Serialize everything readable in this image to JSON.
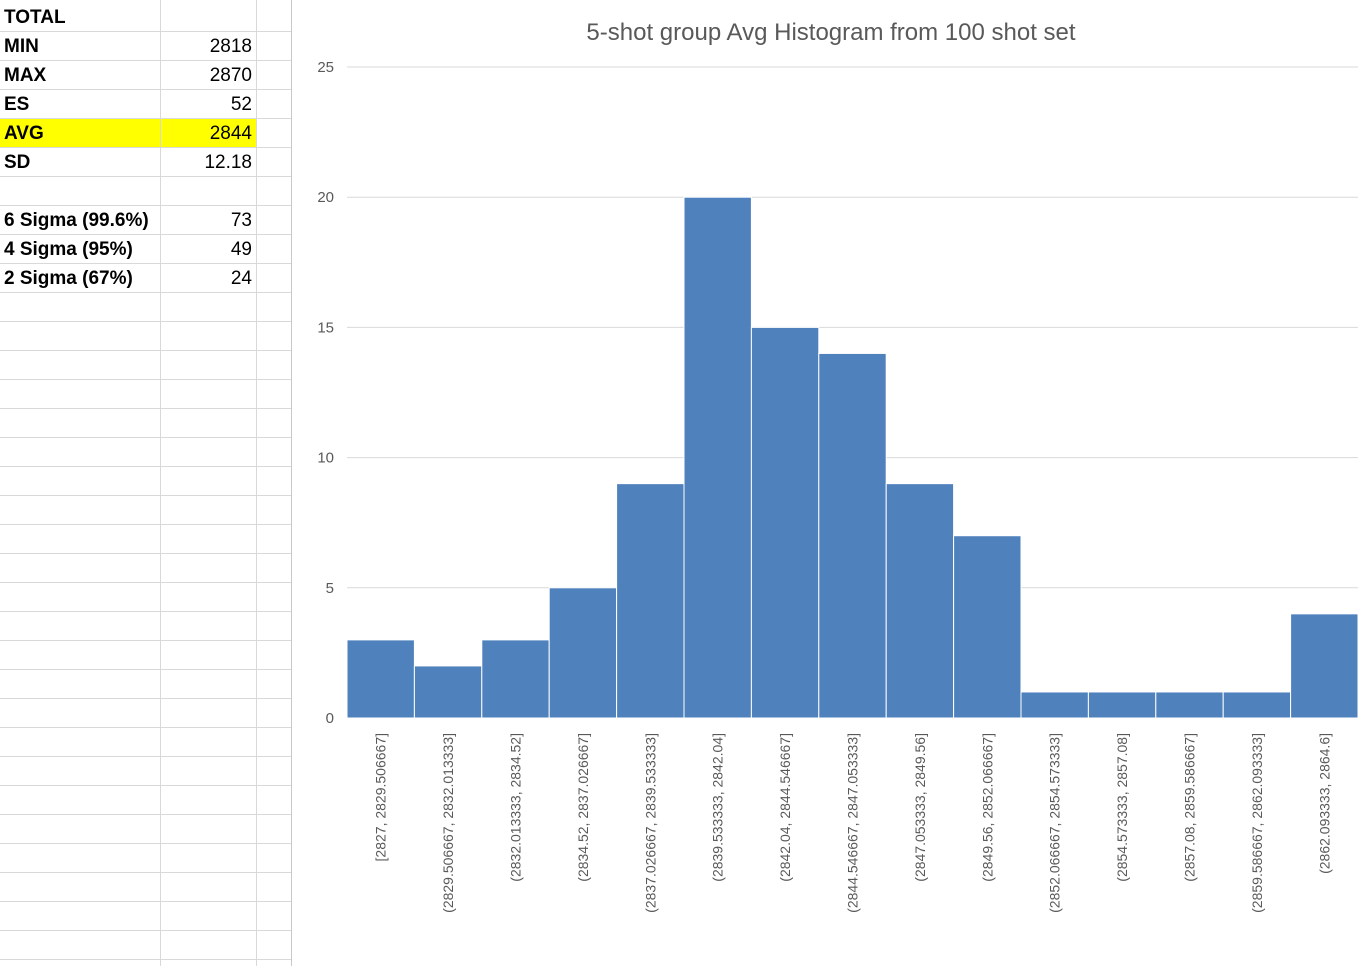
{
  "sheet": {
    "rows": [
      {
        "label": "TOTAL",
        "value": ""
      },
      {
        "label": "MIN",
        "value": "2818"
      },
      {
        "label": "MAX",
        "value": "2870"
      },
      {
        "label": "ES",
        "value": "52"
      },
      {
        "label": "AVG",
        "value": "2844",
        "highlight": true
      },
      {
        "label": "SD",
        "value": "12.18"
      },
      {
        "label": "",
        "value": ""
      },
      {
        "label": "6 Sigma (99.6%)",
        "value": "73"
      },
      {
        "label": "4 Sigma (95%)",
        "value": "49"
      },
      {
        "label": "2 Sigma (67%)",
        "value": "24"
      }
    ],
    "highlight_color": "#ffff00"
  },
  "chart_data": {
    "type": "bar",
    "title": "5-shot group Avg Histogram from 100 shot set",
    "xlabel": "",
    "ylabel": "",
    "ylim": [
      0,
      25
    ],
    "yticks": [
      0,
      5,
      10,
      15,
      20,
      25
    ],
    "grid": true,
    "legend": "none",
    "bar_color": "#4f81bd",
    "categories": [
      "[2827, 2829.506667]",
      "(2829.506667, 2832.013333]",
      "(2832.013333, 2834.52]",
      "(2834.52, 2837.026667]",
      "(2837.026667, 2839.533333]",
      "(2839.533333, 2842.04]",
      "(2842.04, 2844.546667]",
      "(2844.546667, 2847.053333]",
      "(2847.053333, 2849.56]",
      "(2849.56, 2852.066667]",
      "(2852.066667, 2854.573333]",
      "(2854.573333, 2857.08]",
      "(2857.08, 2859.586667]",
      "(2859.586667, 2862.093333]",
      "(2862.093333, 2864.6]"
    ],
    "values": [
      3,
      2,
      3,
      5,
      9,
      20,
      15,
      14,
      9,
      7,
      1,
      1,
      1,
      1,
      4
    ]
  }
}
